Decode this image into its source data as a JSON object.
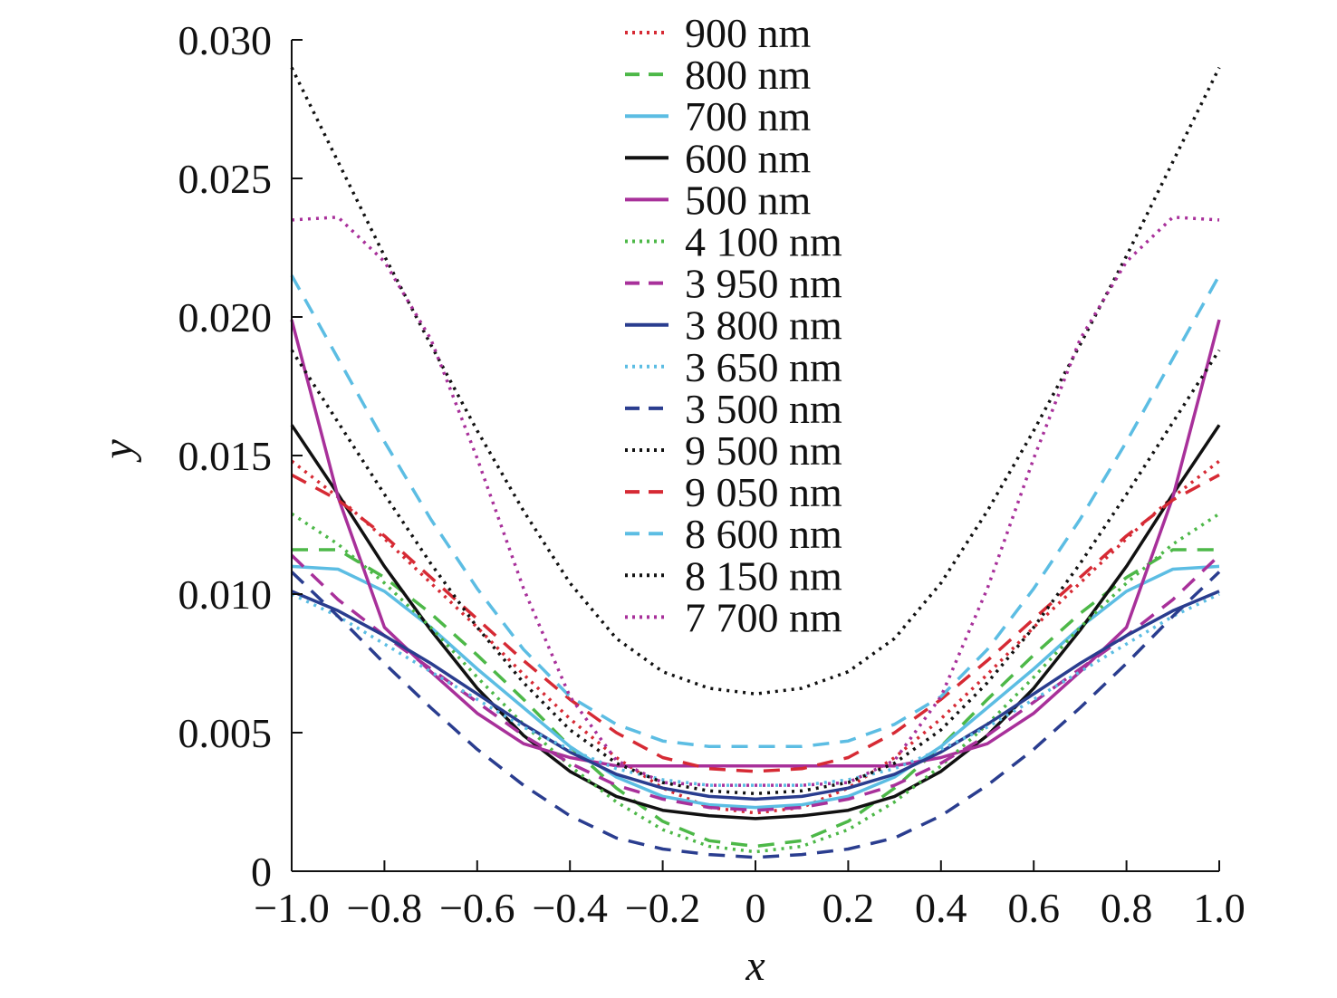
{
  "chart_data": {
    "type": "line",
    "xlabel": "x",
    "ylabel": "y",
    "xlim": [
      -1.0,
      1.0
    ],
    "ylim": [
      0,
      0.03
    ],
    "x_ticks": [
      -1.0,
      -0.8,
      -0.6,
      -0.4,
      -0.2,
      0,
      0.2,
      0.4,
      0.6,
      0.8,
      1.0
    ],
    "x_tick_labels": [
      "−1.0",
      "−0.8",
      "−0.6",
      "−0.4",
      "−0.2",
      "0",
      "0.2",
      "0.4",
      "0.6",
      "0.8",
      "1.0"
    ],
    "y_ticks": [
      0,
      0.005,
      0.01,
      0.015,
      0.02,
      0.025,
      0.03
    ],
    "y_tick_labels": [
      "0",
      "0.005",
      "0.010",
      "0.015",
      "0.020",
      "0.025",
      "0.030"
    ],
    "legend_position": "top-center",
    "x": [
      -1.0,
      -0.9,
      -0.8,
      -0.7,
      -0.6,
      -0.5,
      -0.4,
      -0.3,
      -0.2,
      -0.1,
      0.0,
      0.1,
      0.2,
      0.3,
      0.4,
      0.5,
      0.6,
      0.7,
      0.8,
      0.9,
      1.0
    ],
    "series": [
      {
        "name": "900 nm",
        "color": "#d62a34",
        "style": "dotted",
        "values": [
          0.0148,
          0.0135,
          0.012,
          0.0104,
          0.0088,
          0.0071,
          0.0055,
          0.0041,
          0.003,
          0.0023,
          0.0021,
          0.0023,
          0.003,
          0.0041,
          0.0055,
          0.0071,
          0.0088,
          0.0104,
          0.012,
          0.0135,
          0.0148
        ]
      },
      {
        "name": "800 nm",
        "color": "#4db848",
        "style": "dashed",
        "values": [
          0.0116,
          0.0116,
          0.0106,
          0.0093,
          0.0078,
          0.0062,
          0.0045,
          0.003,
          0.0018,
          0.0011,
          0.0009,
          0.0011,
          0.0018,
          0.003,
          0.0045,
          0.0062,
          0.0078,
          0.0093,
          0.0106,
          0.0116,
          0.0116
        ]
      },
      {
        "name": "700 nm",
        "color": "#5cbde3",
        "style": "solid",
        "values": [
          0.011,
          0.0109,
          0.0101,
          0.0088,
          0.0073,
          0.0059,
          0.0045,
          0.0034,
          0.0027,
          0.0024,
          0.0023,
          0.0024,
          0.0027,
          0.0034,
          0.0045,
          0.0059,
          0.0073,
          0.0088,
          0.0101,
          0.0109,
          0.011
        ]
      },
      {
        "name": "600 nm",
        "color": "#111111",
        "style": "solid",
        "values": [
          0.0161,
          0.0136,
          0.011,
          0.0087,
          0.0066,
          0.0049,
          0.0036,
          0.0027,
          0.0022,
          0.002,
          0.0019,
          0.002,
          0.0022,
          0.0027,
          0.0036,
          0.0049,
          0.0066,
          0.0087,
          0.011,
          0.0136,
          0.0161
        ]
      },
      {
        "name": "500 nm",
        "color": "#a8309a",
        "style": "solid",
        "values": [
          0.0199,
          0.0135,
          0.0088,
          0.0072,
          0.0057,
          0.0046,
          0.0041,
          0.0038,
          0.0038,
          0.0038,
          0.0038,
          0.0038,
          0.0038,
          0.0038,
          0.0041,
          0.0046,
          0.0057,
          0.0072,
          0.0088,
          0.0135,
          0.0199
        ]
      },
      {
        "name": "4 100 nm",
        "color": "#4db848",
        "style": "dotted",
        "values": [
          0.0129,
          0.0118,
          0.0104,
          0.0088,
          0.007,
          0.0053,
          0.0038,
          0.0025,
          0.0015,
          0.0009,
          0.0007,
          0.0009,
          0.0015,
          0.0025,
          0.0038,
          0.0053,
          0.007,
          0.0088,
          0.0104,
          0.0118,
          0.0129
        ]
      },
      {
        "name": "3 950 nm",
        "color": "#a8309a",
        "style": "dashed",
        "values": [
          0.0114,
          0.0098,
          0.0085,
          0.0073,
          0.0061,
          0.0049,
          0.0039,
          0.0031,
          0.0026,
          0.0023,
          0.0022,
          0.0023,
          0.0026,
          0.0031,
          0.0039,
          0.0049,
          0.0061,
          0.0073,
          0.0085,
          0.0098,
          0.0114
        ]
      },
      {
        "name": "3 800 nm",
        "color": "#2a3d8f",
        "style": "solid",
        "values": [
          0.0101,
          0.0094,
          0.0085,
          0.0075,
          0.0064,
          0.0053,
          0.0043,
          0.0035,
          0.003,
          0.0027,
          0.0026,
          0.0027,
          0.003,
          0.0035,
          0.0043,
          0.0053,
          0.0064,
          0.0075,
          0.0085,
          0.0094,
          0.0101
        ]
      },
      {
        "name": "3 650 nm",
        "color": "#5cbde3",
        "style": "dotted",
        "values": [
          0.01,
          0.0092,
          0.0082,
          0.0072,
          0.0062,
          0.0052,
          0.0044,
          0.0037,
          0.0033,
          0.0031,
          0.0031,
          0.0031,
          0.0033,
          0.0037,
          0.0044,
          0.0052,
          0.0062,
          0.0072,
          0.0082,
          0.0092,
          0.01
        ]
      },
      {
        "name": "3 500 nm",
        "color": "#2a3d8f",
        "style": "dashed",
        "values": [
          0.0108,
          0.0092,
          0.0075,
          0.0059,
          0.0044,
          0.0031,
          0.002,
          0.0012,
          0.0008,
          0.0006,
          0.0005,
          0.0006,
          0.0008,
          0.0012,
          0.002,
          0.0031,
          0.0044,
          0.0059,
          0.0075,
          0.0092,
          0.0108
        ]
      },
      {
        "name": "9 500 nm",
        "color": "#111111",
        "style": "dotted",
        "values": [
          0.029,
          0.0256,
          0.0222,
          0.019,
          0.0159,
          0.013,
          0.0104,
          0.0084,
          0.0072,
          0.0066,
          0.0064,
          0.0066,
          0.0072,
          0.0084,
          0.0104,
          0.013,
          0.0159,
          0.019,
          0.0222,
          0.0256,
          0.029
        ]
      },
      {
        "name": "9 050 nm",
        "color": "#d62a34",
        "style": "dashed",
        "values": [
          0.0143,
          0.0134,
          0.0121,
          0.0106,
          0.0091,
          0.0076,
          0.0062,
          0.005,
          0.0041,
          0.0037,
          0.0036,
          0.0037,
          0.0041,
          0.005,
          0.0062,
          0.0076,
          0.0091,
          0.0106,
          0.0121,
          0.0134,
          0.0143
        ]
      },
      {
        "name": "8 600 nm",
        "color": "#5cbde3",
        "style": "dashed",
        "values": [
          0.0215,
          0.0185,
          0.0155,
          0.0127,
          0.0102,
          0.008,
          0.0063,
          0.0053,
          0.0047,
          0.0045,
          0.0045,
          0.0045,
          0.0047,
          0.0053,
          0.0063,
          0.008,
          0.0102,
          0.0127,
          0.0155,
          0.0185,
          0.0215
        ]
      },
      {
        "name": "8 150 nm",
        "color": "#111111",
        "style": "dotted",
        "values": [
          0.0188,
          0.0162,
          0.0136,
          0.0111,
          0.0088,
          0.0068,
          0.0051,
          0.0039,
          0.0032,
          0.0029,
          0.0028,
          0.0029,
          0.0032,
          0.0039,
          0.0051,
          0.0068,
          0.0088,
          0.0111,
          0.0136,
          0.0162,
          0.0188
        ]
      },
      {
        "name": "7 700 nm",
        "color": "#a8309a",
        "style": "dotted",
        "values": [
          0.0235,
          0.0236,
          0.022,
          0.0192,
          0.0149,
          0.0102,
          0.0063,
          0.004,
          0.0032,
          0.0031,
          0.0031,
          0.0031,
          0.0032,
          0.004,
          0.0063,
          0.0102,
          0.0149,
          0.0192,
          0.022,
          0.0236,
          0.0235
        ]
      }
    ]
  }
}
